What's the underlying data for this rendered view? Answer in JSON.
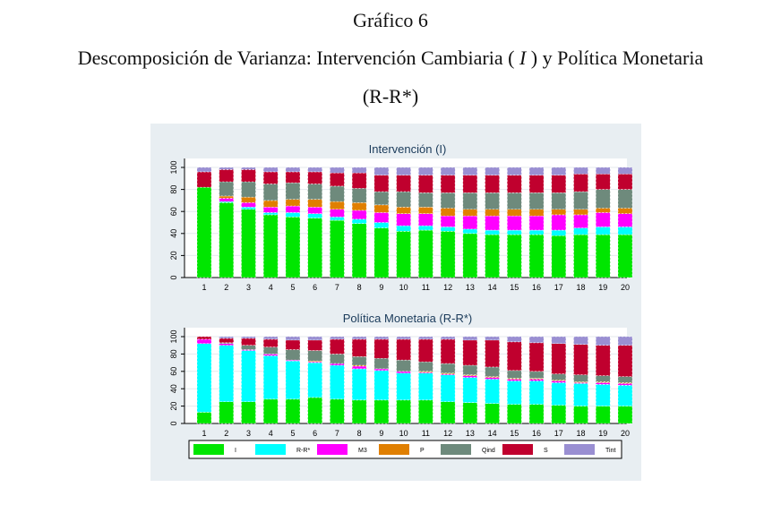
{
  "header": {
    "title": "Gráfico 6",
    "subtitle_pre": "Descomposición de Varianza: Intervención Cambiaria (",
    "subtitle_var": "I",
    "subtitle_post": ") y Política Monetaria",
    "subtitle_line2": "(R-R*)"
  },
  "chart_data": [
    {
      "type": "bar",
      "stacked": true,
      "title": "Intervención (I)",
      "categories": [
        "1",
        "2",
        "3",
        "4",
        "5",
        "6",
        "7",
        "8",
        "9",
        "10",
        "11",
        "12",
        "13",
        "14",
        "15",
        "16",
        "17",
        "18",
        "19",
        "20"
      ],
      "ylim": [
        0,
        100
      ],
      "yticks": [
        "0",
        "20",
        "40",
        "60",
        "80",
        "100"
      ],
      "grid": true,
      "series": [
        {
          "name": "I",
          "color": "#00e600",
          "values": [
            82,
            68,
            62,
            57,
            55,
            54,
            52,
            49,
            45,
            42,
            43,
            42,
            40,
            39,
            39,
            39,
            38,
            39,
            39,
            39
          ]
        },
        {
          "name": "R-R*",
          "color": "#00ffff",
          "values": [
            0,
            1,
            2,
            2,
            4,
            4,
            3,
            4,
            5,
            5,
            4,
            4,
            4,
            4,
            4,
            4,
            5,
            6,
            7,
            7
          ]
        },
        {
          "name": "M3",
          "color": "#ff00ff",
          "values": [
            0,
            3,
            4,
            5,
            6,
            6,
            7,
            8,
            9,
            11,
            11,
            10,
            12,
            13,
            13,
            13,
            14,
            12,
            13,
            12
          ]
        },
        {
          "name": "P",
          "color": "#e07f00",
          "values": [
            0,
            2,
            5,
            6,
            6,
            7,
            7,
            7,
            7,
            6,
            6,
            7,
            6,
            6,
            6,
            6,
            5,
            5,
            4,
            5
          ]
        },
        {
          "name": "Qind",
          "color": "#6e8a7c",
          "values": [
            0,
            13,
            14,
            15,
            15,
            14,
            14,
            13,
            12,
            14,
            13,
            14,
            15,
            15,
            15,
            15,
            15,
            16,
            17,
            17
          ]
        },
        {
          "name": "S",
          "color": "#c0002e",
          "values": [
            14,
            11,
            11,
            11,
            10,
            11,
            12,
            14,
            15,
            15,
            16,
            16,
            16,
            16,
            16,
            16,
            16,
            16,
            14,
            14
          ]
        },
        {
          "name": "Tint",
          "color": "#9a8fd2",
          "values": [
            4,
            2,
            2,
            4,
            4,
            4,
            5,
            5,
            7,
            7,
            7,
            7,
            7,
            7,
            7,
            7,
            7,
            6,
            6,
            6
          ]
        }
      ]
    },
    {
      "type": "bar",
      "stacked": true,
      "title": "Política Monetaria (R-R*)",
      "categories": [
        "1",
        "2",
        "3",
        "4",
        "5",
        "6",
        "7",
        "8",
        "9",
        "10",
        "11",
        "12",
        "13",
        "14",
        "15",
        "16",
        "17",
        "18",
        "19",
        "20"
      ],
      "ylim": [
        0,
        100
      ],
      "yticks": [
        "0",
        "20",
        "40",
        "60",
        "80",
        "100"
      ],
      "grid": true,
      "legend": "bottom",
      "series": [
        {
          "name": "I",
          "color": "#00e600",
          "values": [
            13,
            25,
            25,
            28,
            28,
            30,
            28,
            27,
            27,
            27,
            27,
            25,
            24,
            23,
            22,
            22,
            21,
            20,
            20,
            20
          ]
        },
        {
          "name": "R-R*",
          "color": "#00ffff",
          "values": [
            79,
            65,
            59,
            50,
            44,
            40,
            39,
            36,
            34,
            31,
            31,
            31,
            29,
            28,
            27,
            27,
            26,
            26,
            25,
            24
          ]
        },
        {
          "name": "M3",
          "color": "#ff00ff",
          "values": [
            5,
            2,
            1,
            2,
            1,
            1,
            2,
            3,
            2,
            2,
            1,
            1,
            2,
            2,
            2,
            2,
            2,
            1,
            2,
            2
          ]
        },
        {
          "name": "P",
          "color": "#e07f00",
          "values": [
            0,
            0,
            0,
            0,
            0,
            1,
            0,
            1,
            0,
            0,
            1,
            1,
            1,
            1,
            1,
            1,
            1,
            1,
            1,
            1
          ]
        },
        {
          "name": "Qind",
          "color": "#6e8a7c",
          "values": [
            0,
            1,
            5,
            8,
            12,
            12,
            11,
            10,
            12,
            13,
            11,
            11,
            11,
            11,
            9,
            8,
            7,
            8,
            7,
            7
          ]
        },
        {
          "name": "S",
          "color": "#c0002e",
          "values": [
            3,
            5,
            8,
            9,
            11,
            12,
            17,
            20,
            22,
            24,
            26,
            28,
            29,
            31,
            33,
            33,
            35,
            35,
            35,
            36
          ]
        },
        {
          "name": "Tint",
          "color": "#9a8fd2",
          "values": [
            0,
            2,
            2,
            3,
            4,
            4,
            3,
            3,
            3,
            3,
            3,
            3,
            4,
            4,
            6,
            7,
            8,
            9,
            10,
            10
          ]
        }
      ]
    }
  ]
}
